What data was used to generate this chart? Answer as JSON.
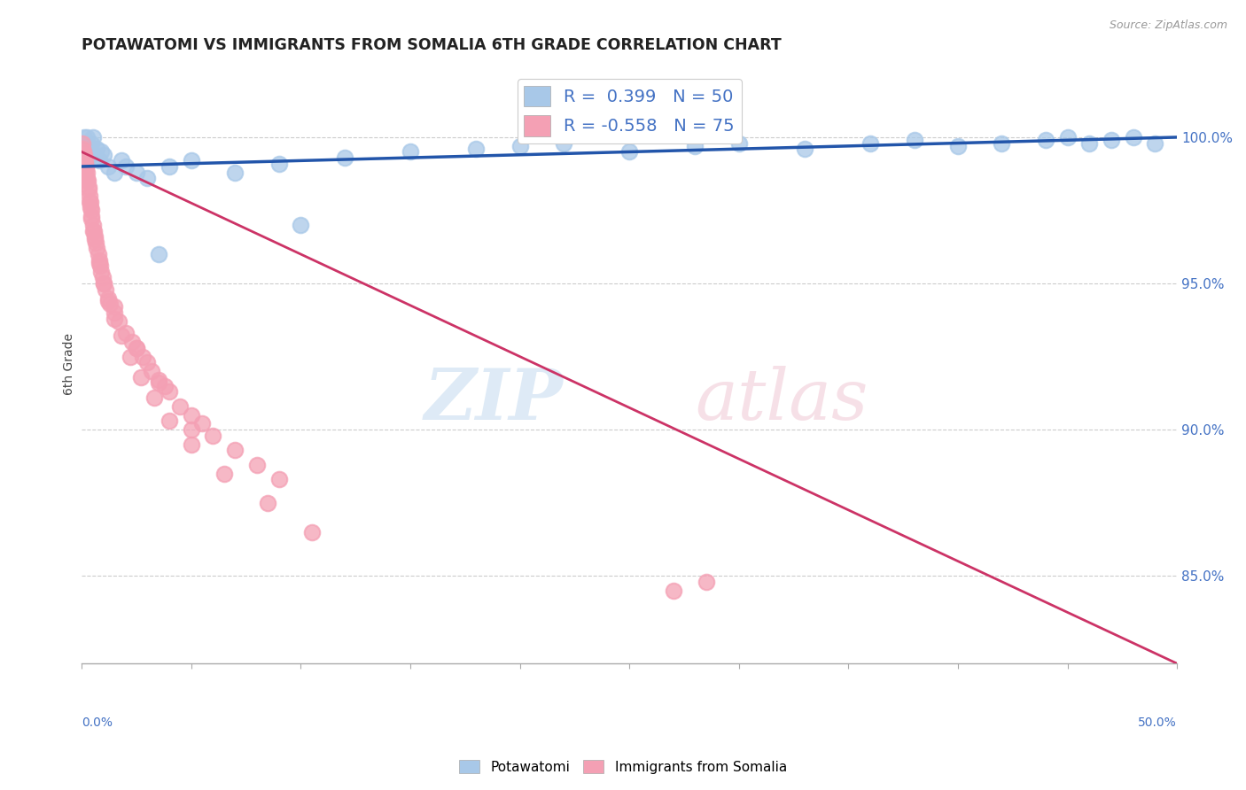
{
  "title": "POTAWATOMI VS IMMIGRANTS FROM SOMALIA 6TH GRADE CORRELATION CHART",
  "source": "Source: ZipAtlas.com",
  "ylabel": "6th Grade",
  "R_blue": 0.399,
  "N_blue": 50,
  "R_pink": -0.558,
  "N_pink": 75,
  "blue_color": "#a8c8e8",
  "blue_line_color": "#2255aa",
  "pink_color": "#f4a0b4",
  "pink_line_color": "#cc3366",
  "right_yticks": [
    85.0,
    90.0,
    95.0,
    100.0
  ],
  "right_ytick_labels": [
    "85.0%",
    "90.0%",
    "95.0%",
    "100.0%"
  ],
  "xlim": [
    0.0,
    50.0
  ],
  "ylim": [
    82.0,
    102.5
  ],
  "blue_scatter_x": [
    0.05,
    0.1,
    0.12,
    0.15,
    0.18,
    0.2,
    0.22,
    0.25,
    0.28,
    0.3,
    0.35,
    0.4,
    0.45,
    0.5,
    0.6,
    0.7,
    0.8,
    0.9,
    1.0,
    1.2,
    1.5,
    1.8,
    2.0,
    2.5,
    3.0,
    4.0,
    5.0,
    7.0,
    9.0,
    12.0,
    15.0,
    18.0,
    20.0,
    22.0,
    25.0,
    28.0,
    30.0,
    33.0,
    36.0,
    38.0,
    40.0,
    42.0,
    44.0,
    45.0,
    46.0,
    47.0,
    48.0,
    49.0,
    10.0,
    3.5
  ],
  "blue_scatter_y": [
    99.5,
    99.8,
    100.0,
    99.6,
    99.7,
    99.5,
    100.0,
    99.8,
    99.6,
    99.7,
    99.5,
    99.4,
    99.8,
    100.0,
    99.3,
    99.6,
    99.2,
    99.5,
    99.4,
    99.0,
    98.8,
    99.2,
    99.0,
    98.8,
    98.6,
    99.0,
    99.2,
    98.8,
    99.1,
    99.3,
    99.5,
    99.6,
    99.7,
    99.8,
    99.5,
    99.7,
    99.8,
    99.6,
    99.8,
    99.9,
    99.7,
    99.8,
    99.9,
    100.0,
    99.8,
    99.9,
    100.0,
    99.8,
    97.0,
    96.0
  ],
  "pink_scatter_x": [
    0.02,
    0.05,
    0.07,
    0.1,
    0.12,
    0.15,
    0.18,
    0.2,
    0.22,
    0.25,
    0.28,
    0.3,
    0.32,
    0.35,
    0.38,
    0.4,
    0.42,
    0.45,
    0.5,
    0.55,
    0.6,
    0.65,
    0.7,
    0.75,
    0.8,
    0.85,
    0.9,
    0.95,
    1.0,
    1.1,
    1.2,
    1.3,
    1.5,
    1.7,
    2.0,
    2.3,
    2.5,
    2.8,
    3.0,
    3.2,
    3.5,
    3.8,
    4.0,
    4.5,
    5.0,
    5.5,
    6.0,
    7.0,
    8.0,
    9.0,
    0.15,
    0.25,
    0.35,
    0.45,
    0.6,
    0.8,
    1.0,
    1.2,
    1.5,
    1.8,
    2.2,
    2.7,
    3.3,
    4.0,
    5.0,
    6.5,
    8.5,
    10.5,
    0.5,
    1.5,
    2.5,
    3.5,
    5.0,
    27.0,
    28.5
  ],
  "pink_scatter_y": [
    99.8,
    99.6,
    99.5,
    99.4,
    99.3,
    99.2,
    99.0,
    98.9,
    98.8,
    98.6,
    98.5,
    98.3,
    98.2,
    98.0,
    97.8,
    97.6,
    97.5,
    97.3,
    97.0,
    96.8,
    96.6,
    96.4,
    96.2,
    96.0,
    95.8,
    95.6,
    95.4,
    95.2,
    95.0,
    94.8,
    94.5,
    94.3,
    94.0,
    93.7,
    93.3,
    93.0,
    92.8,
    92.5,
    92.3,
    92.0,
    91.7,
    91.5,
    91.3,
    90.8,
    90.5,
    90.2,
    89.8,
    89.3,
    88.8,
    88.3,
    99.0,
    98.5,
    97.8,
    97.2,
    96.5,
    95.7,
    95.0,
    94.4,
    93.8,
    93.2,
    92.5,
    91.8,
    91.1,
    90.3,
    89.5,
    88.5,
    87.5,
    86.5,
    96.8,
    94.2,
    92.8,
    91.6,
    90.0,
    84.5,
    84.8
  ]
}
